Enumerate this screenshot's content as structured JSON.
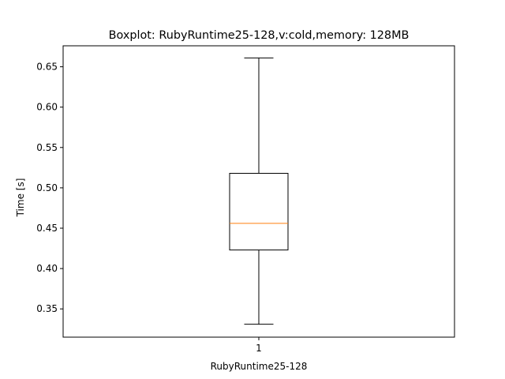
{
  "chart_data": {
    "type": "box",
    "title": "Boxplot: RubyRuntime25-128,v:cold,memory: 128MB",
    "xlabel": "RubyRuntime25-128",
    "ylabel": "Time [s]",
    "categories": [
      "1"
    ],
    "ylim": [
      0.315,
      0.676
    ],
    "yticks": [
      0.35,
      0.4,
      0.45,
      0.5,
      0.55,
      0.6,
      0.65
    ],
    "ytick_labels": [
      "0.35",
      "0.40",
      "0.45",
      "0.50",
      "0.55",
      "0.60",
      "0.65"
    ],
    "boxes": [
      {
        "category": "1",
        "whisker_low": 0.331,
        "q1": 0.423,
        "median": 0.456,
        "q3": 0.518,
        "whisker_high": 0.661
      }
    ],
    "grid": false,
    "colors": {
      "box": "#000000",
      "median": "#ff7f0e",
      "whisker": "#000000"
    }
  }
}
